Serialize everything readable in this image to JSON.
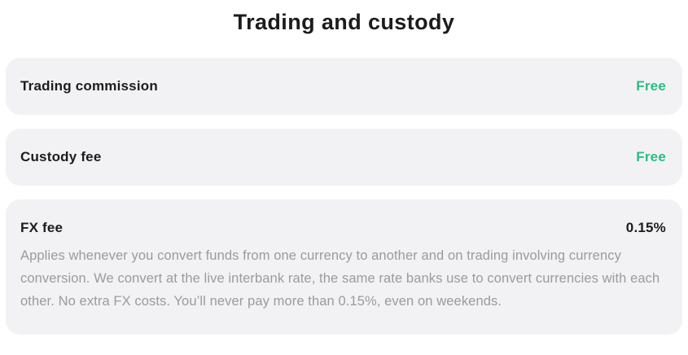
{
  "colors": {
    "accent_green": "#2abd84",
    "text_dark": "#1c1c1e",
    "text_muted": "#9b9b9e",
    "card_bg": "#f2f2f4",
    "page_bg": "#ffffff"
  },
  "section": {
    "title": "Trading and custody"
  },
  "rows": [
    {
      "label": "Trading commission",
      "value": "Free"
    },
    {
      "label": "Custody fee",
      "value": "Free"
    },
    {
      "label": "FX fee",
      "value": "0.15%",
      "description": "Applies whenever you convert funds from one currency to another and on trading involving currency conversion. We convert at the live interbank rate, the same rate banks use to convert currencies with each other. No extra FX costs. You’ll never pay more than 0.15%, even on weekends."
    }
  ]
}
